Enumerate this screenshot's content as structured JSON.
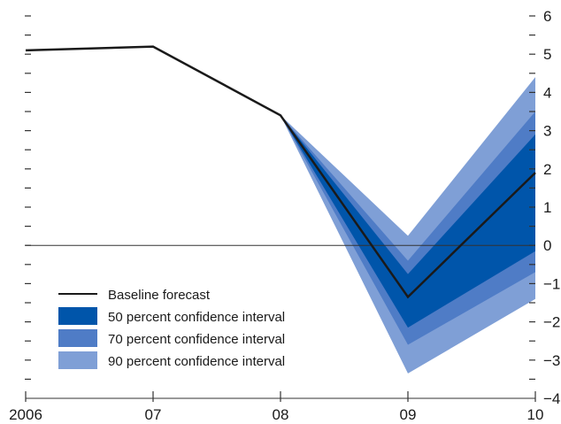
{
  "chart_data": {
    "type": "area",
    "title": "",
    "xlabel": "",
    "ylabel": "",
    "x": [
      "2006",
      "07",
      "08",
      "09",
      "10"
    ],
    "xticks": [
      "2006",
      "07",
      "08",
      "09",
      "10"
    ],
    "yticks": [
      "6",
      "5",
      "4",
      "3",
      "2",
      "1",
      "0",
      "-1",
      "-2",
      "-3",
      "-4"
    ],
    "ylim": [
      -4,
      6
    ],
    "zero_line": true,
    "baseline": {
      "name": "Baseline forecast",
      "values": [
        5.1,
        5.2,
        3.4,
        -1.35,
        1.9
      ],
      "color": "#1a1a1a"
    },
    "bands": [
      {
        "name": "90 percent confidence interval",
        "color": "#7f9fd6",
        "lower": [
          null,
          null,
          3.4,
          -3.35,
          -1.4
        ],
        "upper": [
          null,
          null,
          3.4,
          0.25,
          4.4
        ]
      },
      {
        "name": "70 percent confidence interval",
        "color": "#4f7cc6",
        "lower": [
          null,
          null,
          3.4,
          -2.6,
          -0.7
        ],
        "upper": [
          null,
          null,
          3.4,
          -0.4,
          3.5
        ]
      },
      {
        "name": "50 percent confidence interval",
        "color": "#0055aa",
        "lower": [
          null,
          null,
          3.4,
          -2.15,
          -0.15
        ],
        "upper": [
          null,
          null,
          3.4,
          -0.75,
          2.9
        ]
      }
    ],
    "legend": {
      "placement": "bottom-left",
      "entries": [
        {
          "label": "Baseline forecast",
          "kind": "line",
          "color": "#1a1a1a"
        },
        {
          "label": "50 percent confidence interval",
          "kind": "patch",
          "color": "#0055aa"
        },
        {
          "label": "70 percent confidence interval",
          "kind": "patch",
          "color": "#4f7cc6"
        },
        {
          "label": "90 percent confidence interval",
          "kind": "patch",
          "color": "#7f9fd6"
        }
      ]
    }
  }
}
